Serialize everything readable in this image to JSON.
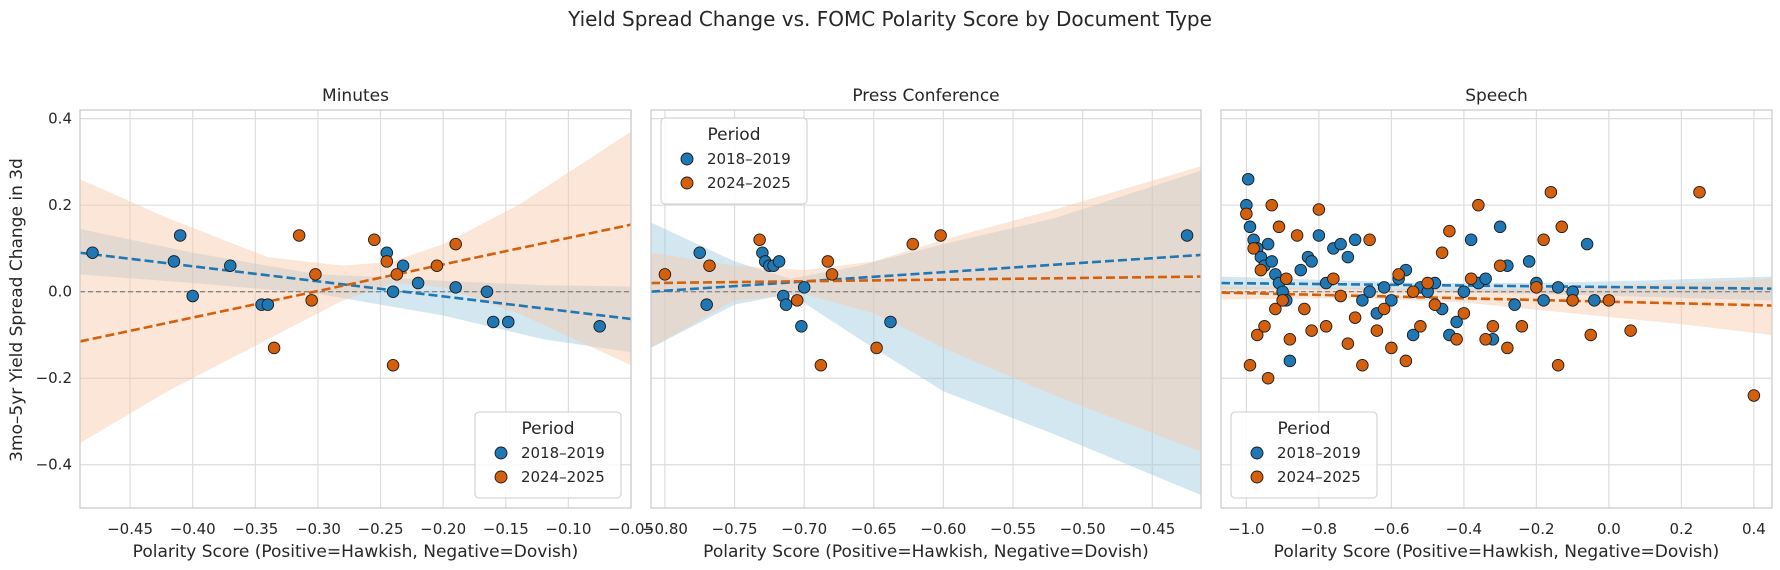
{
  "figure": {
    "title": "Yield Spread Change vs. FOMC Polarity Score by Document Type"
  },
  "colors": {
    "series_2018": "#1f77b4",
    "series_2024": "#d4600e",
    "band_2018": "#9ecae1",
    "band_2024": "#f6c8a8",
    "grid": "#dddddd",
    "zero_line": "#888888"
  },
  "chart_data": [
    {
      "type": "scatter",
      "title": "Minutes",
      "xlabel": "Polarity Score (Positive=Hawkish, Negative=Dovish)",
      "ylabel": "3mo–5yr Yield Spread Change in 3d",
      "xlim": [
        -0.49,
        -0.05
      ],
      "ylim": [
        -0.5,
        0.42
      ],
      "xticks": [
        -0.45,
        -0.4,
        -0.35,
        -0.3,
        -0.25,
        -0.2,
        -0.15,
        -0.1,
        -0.05
      ],
      "xtick_labels": [
        "−0.45",
        "−0.40",
        "−0.35",
        "−0.30",
        "−0.25",
        "−0.20",
        "−0.15",
        "−0.10",
        "−0.05"
      ],
      "yticks": [
        -0.4,
        -0.2,
        0.0,
        0.2,
        0.4
      ],
      "ytick_labels": [
        "−0.4",
        "−0.2",
        "0.0",
        "0.2",
        "0.4"
      ],
      "show_yticks": true,
      "grid": true,
      "legend": {
        "title": "Period",
        "placement": "lower-right"
      },
      "series": [
        {
          "name": "2018–2019",
          "points": [
            [
              -0.48,
              0.09
            ],
            [
              -0.415,
              0.07
            ],
            [
              -0.41,
              0.13
            ],
            [
              -0.4,
              -0.01
            ],
            [
              -0.37,
              0.06
            ],
            [
              -0.345,
              -0.03
            ],
            [
              -0.34,
              -0.03
            ],
            [
              -0.245,
              0.09
            ],
            [
              -0.24,
              0.0
            ],
            [
              -0.232,
              0.06
            ],
            [
              -0.22,
              0.02
            ],
            [
              -0.19,
              0.01
            ],
            [
              -0.165,
              0.0
            ],
            [
              -0.16,
              -0.07
            ],
            [
              -0.148,
              -0.07
            ],
            [
              -0.075,
              -0.08
            ]
          ],
          "trend": [
            [
              -0.49,
              0.09
            ],
            [
              -0.05,
              -0.063
            ]
          ],
          "band": [
            [
              -0.49,
              0.145,
              0.04
            ],
            [
              -0.4,
              0.09,
              0.02
            ],
            [
              -0.3,
              0.04,
              -0.005
            ],
            [
              -0.26,
              0.035,
              -0.025
            ],
            [
              -0.2,
              0.025,
              -0.055
            ],
            [
              -0.12,
              0.015,
              -0.11
            ],
            [
              -0.05,
              0.012,
              -0.14
            ]
          ]
        },
        {
          "name": "2024–2025",
          "points": [
            [
              -0.335,
              -0.13
            ],
            [
              -0.315,
              0.13
            ],
            [
              -0.305,
              -0.02
            ],
            [
              -0.302,
              0.04
            ],
            [
              -0.255,
              0.12
            ],
            [
              -0.245,
              0.07
            ],
            [
              -0.24,
              -0.17
            ],
            [
              -0.237,
              0.04
            ],
            [
              -0.205,
              0.06
            ],
            [
              -0.19,
              0.11
            ]
          ],
          "trend": [
            [
              -0.49,
              -0.115
            ],
            [
              -0.05,
              0.155
            ]
          ],
          "band": [
            [
              -0.49,
              0.26,
              -0.35
            ],
            [
              -0.42,
              0.17,
              -0.23
            ],
            [
              -0.34,
              0.08,
              -0.11
            ],
            [
              -0.28,
              0.06,
              -0.02
            ],
            [
              -0.24,
              0.07,
              0.02
            ],
            [
              -0.2,
              0.11,
              0.01
            ],
            [
              -0.14,
              0.2,
              -0.05
            ],
            [
              -0.05,
              0.37,
              -0.17
            ]
          ]
        }
      ]
    },
    {
      "type": "scatter",
      "title": "Press Conference",
      "xlabel": "Polarity Score (Positive=Hawkish, Negative=Dovish)",
      "ylabel": "",
      "xlim": [
        -0.81,
        -0.415
      ],
      "ylim": [
        -0.5,
        0.42
      ],
      "xticks": [
        -0.8,
        -0.75,
        -0.7,
        -0.65,
        -0.6,
        -0.55,
        -0.5,
        -0.45
      ],
      "xtick_labels": [
        "−0.80",
        "−0.75",
        "−0.70",
        "−0.65",
        "−0.60",
        "−0.55",
        "−0.50",
        "−0.45"
      ],
      "yticks": [
        -0.4,
        -0.2,
        0.0,
        0.2,
        0.4
      ],
      "ytick_labels": [
        "−0.4",
        "−0.2",
        "0.0",
        "0.2",
        "0.4"
      ],
      "show_yticks": false,
      "grid": true,
      "legend": {
        "title": "Period",
        "placement": "upper-left"
      },
      "series": [
        {
          "name": "2018–2019",
          "points": [
            [
              -0.775,
              0.09
            ],
            [
              -0.77,
              -0.03
            ],
            [
              -0.73,
              0.09
            ],
            [
              -0.728,
              0.07
            ],
            [
              -0.725,
              0.06
            ],
            [
              -0.722,
              0.06
            ],
            [
              -0.718,
              0.07
            ],
            [
              -0.715,
              -0.01
            ],
            [
              -0.713,
              -0.03
            ],
            [
              -0.7,
              0.01
            ],
            [
              -0.702,
              -0.08
            ],
            [
              -0.638,
              -0.07
            ],
            [
              -0.425,
              0.13
            ]
          ],
          "trend": [
            [
              -0.81,
              0.0
            ],
            [
              -0.415,
              0.085
            ]
          ],
          "band": [
            [
              -0.81,
              0.16,
              -0.13
            ],
            [
              -0.75,
              0.07,
              -0.03
            ],
            [
              -0.71,
              0.03,
              -0.005
            ],
            [
              -0.66,
              0.06,
              -0.11
            ],
            [
              -0.6,
              0.11,
              -0.23
            ],
            [
              -0.52,
              0.17,
              -0.33
            ],
            [
              -0.415,
              0.28,
              -0.47
            ]
          ]
        },
        {
          "name": "2024–2025",
          "points": [
            [
              -0.8,
              0.04
            ],
            [
              -0.768,
              0.06
            ],
            [
              -0.732,
              0.12
            ],
            [
              -0.705,
              -0.02
            ],
            [
              -0.688,
              -0.17
            ],
            [
              -0.683,
              0.07
            ],
            [
              -0.68,
              0.04
            ],
            [
              -0.648,
              -0.13
            ],
            [
              -0.622,
              0.11
            ],
            [
              -0.602,
              0.13
            ]
          ],
          "trend": [
            [
              -0.81,
              0.02
            ],
            [
              -0.415,
              0.035
            ]
          ],
          "band": [
            [
              -0.81,
              0.09,
              -0.13
            ],
            [
              -0.75,
              0.06,
              -0.02
            ],
            [
              -0.7,
              0.05,
              -0.005
            ],
            [
              -0.65,
              0.07,
              -0.05
            ],
            [
              -0.6,
              0.12,
              -0.13
            ],
            [
              -0.52,
              0.19,
              -0.24
            ],
            [
              -0.415,
              0.29,
              -0.37
            ]
          ]
        }
      ]
    },
    {
      "type": "scatter",
      "title": "Speech",
      "xlabel": "Polarity Score (Positive=Hawkish, Negative=Dovish)",
      "ylabel": "",
      "xlim": [
        -1.07,
        0.45
      ],
      "ylim": [
        -0.5,
        0.42
      ],
      "xticks": [
        -1.0,
        -0.8,
        -0.6,
        -0.4,
        -0.2,
        0.0,
        0.2,
        0.4
      ],
      "xtick_labels": [
        "−1.0",
        "−0.8",
        "−0.6",
        "−0.4",
        "−0.2",
        "0.0",
        "0.2",
        "0.4"
      ],
      "yticks": [
        -0.4,
        -0.2,
        0.0,
        0.2,
        0.4
      ],
      "ytick_labels": [
        "−0.4",
        "−0.2",
        "0.0",
        "0.2",
        "0.4"
      ],
      "show_yticks": false,
      "grid": true,
      "legend": {
        "title": "Period",
        "placement": "lower-left"
      },
      "series": [
        {
          "name": "2018–2019",
          "points": [
            [
              -0.995,
              0.26
            ],
            [
              -1.0,
              0.2
            ],
            [
              -0.99,
              0.15
            ],
            [
              -0.98,
              0.12
            ],
            [
              -0.97,
              0.1
            ],
            [
              -0.96,
              0.08
            ],
            [
              -0.95,
              0.06
            ],
            [
              -0.94,
              0.11
            ],
            [
              -0.93,
              0.07
            ],
            [
              -0.92,
              0.04
            ],
            [
              -0.91,
              0.02
            ],
            [
              -0.9,
              0.0
            ],
            [
              -0.89,
              -0.02
            ],
            [
              -0.88,
              -0.16
            ],
            [
              -0.85,
              0.05
            ],
            [
              -0.83,
              0.08
            ],
            [
              -0.82,
              0.07
            ],
            [
              -0.8,
              0.13
            ],
            [
              -0.78,
              0.02
            ],
            [
              -0.76,
              0.1
            ],
            [
              -0.74,
              0.11
            ],
            [
              -0.72,
              0.08
            ],
            [
              -0.7,
              0.12
            ],
            [
              -0.68,
              -0.02
            ],
            [
              -0.66,
              0.0
            ],
            [
              -0.64,
              -0.05
            ],
            [
              -0.62,
              0.01
            ],
            [
              -0.6,
              -0.02
            ],
            [
              -0.58,
              0.03
            ],
            [
              -0.56,
              0.05
            ],
            [
              -0.54,
              -0.1
            ],
            [
              -0.52,
              0.01
            ],
            [
              -0.5,
              0.0
            ],
            [
              -0.48,
              0.02
            ],
            [
              -0.46,
              -0.04
            ],
            [
              -0.44,
              -0.1
            ],
            [
              -0.42,
              -0.07
            ],
            [
              -0.4,
              0.0
            ],
            [
              -0.38,
              0.12
            ],
            [
              -0.36,
              0.02
            ],
            [
              -0.34,
              0.03
            ],
            [
              -0.32,
              -0.11
            ],
            [
              -0.3,
              0.15
            ],
            [
              -0.28,
              0.06
            ],
            [
              -0.26,
              -0.03
            ],
            [
              -0.22,
              0.07
            ],
            [
              -0.2,
              0.02
            ],
            [
              -0.18,
              -0.02
            ],
            [
              -0.14,
              0.01
            ],
            [
              -0.1,
              0.0
            ],
            [
              -0.06,
              0.11
            ],
            [
              -0.04,
              -0.02
            ]
          ],
          "trend": [
            [
              -1.07,
              0.02
            ],
            [
              0.45,
              0.007
            ]
          ],
          "band": [
            [
              -1.07,
              0.035,
              0.005
            ],
            [
              -0.7,
              0.025,
              0.005
            ],
            [
              -0.5,
              0.02,
              0.0
            ],
            [
              -0.2,
              0.02,
              -0.005
            ],
            [
              0.1,
              0.026,
              -0.012
            ],
            [
              0.45,
              0.035,
              -0.02
            ]
          ]
        },
        {
          "name": "2024–2025",
          "points": [
            [
              -1.0,
              0.18
            ],
            [
              -0.99,
              -0.17
            ],
            [
              -0.98,
              0.1
            ],
            [
              -0.97,
              -0.1
            ],
            [
              -0.96,
              0.05
            ],
            [
              -0.95,
              -0.08
            ],
            [
              -0.94,
              -0.2
            ],
            [
              -0.93,
              0.2
            ],
            [
              -0.92,
              -0.04
            ],
            [
              -0.91,
              0.15
            ],
            [
              -0.9,
              -0.02
            ],
            [
              -0.89,
              0.03
            ],
            [
              -0.88,
              -0.11
            ],
            [
              -0.86,
              0.13
            ],
            [
              -0.84,
              -0.04
            ],
            [
              -0.82,
              -0.09
            ],
            [
              -0.8,
              0.19
            ],
            [
              -0.78,
              -0.08
            ],
            [
              -0.76,
              0.03
            ],
            [
              -0.74,
              -0.01
            ],
            [
              -0.72,
              -0.12
            ],
            [
              -0.7,
              -0.06
            ],
            [
              -0.68,
              -0.17
            ],
            [
              -0.66,
              0.12
            ],
            [
              -0.64,
              -0.09
            ],
            [
              -0.62,
              -0.04
            ],
            [
              -0.6,
              -0.13
            ],
            [
              -0.58,
              0.04
            ],
            [
              -0.56,
              -0.16
            ],
            [
              -0.54,
              0.0
            ],
            [
              -0.52,
              -0.08
            ],
            [
              -0.5,
              0.02
            ],
            [
              -0.48,
              -0.03
            ],
            [
              -0.46,
              0.09
            ],
            [
              -0.44,
              0.14
            ],
            [
              -0.42,
              -0.11
            ],
            [
              -0.4,
              -0.05
            ],
            [
              -0.38,
              0.03
            ],
            [
              -0.36,
              0.2
            ],
            [
              -0.34,
              -0.11
            ],
            [
              -0.32,
              -0.08
            ],
            [
              -0.3,
              0.06
            ],
            [
              -0.28,
              -0.13
            ],
            [
              -0.24,
              -0.08
            ],
            [
              -0.2,
              0.01
            ],
            [
              -0.18,
              0.12
            ],
            [
              -0.16,
              0.23
            ],
            [
              -0.14,
              -0.17
            ],
            [
              -0.13,
              0.15
            ],
            [
              -0.1,
              -0.02
            ],
            [
              -0.05,
              -0.1
            ],
            [
              0.0,
              -0.02
            ],
            [
              0.06,
              -0.09
            ],
            [
              0.25,
              0.23
            ],
            [
              0.4,
              -0.24
            ]
          ],
          "trend": [
            [
              -1.07,
              -0.002
            ],
            [
              0.45,
              -0.032
            ]
          ],
          "band": [
            [
              -1.07,
              0.012,
              -0.018
            ],
            [
              -0.7,
              0.008,
              -0.015
            ],
            [
              -0.4,
              0.005,
              -0.025
            ],
            [
              -0.1,
              0.01,
              -0.05
            ],
            [
              0.2,
              0.02,
              -0.075
            ],
            [
              0.45,
              0.03,
              -0.1
            ]
          ]
        }
      ]
    }
  ]
}
